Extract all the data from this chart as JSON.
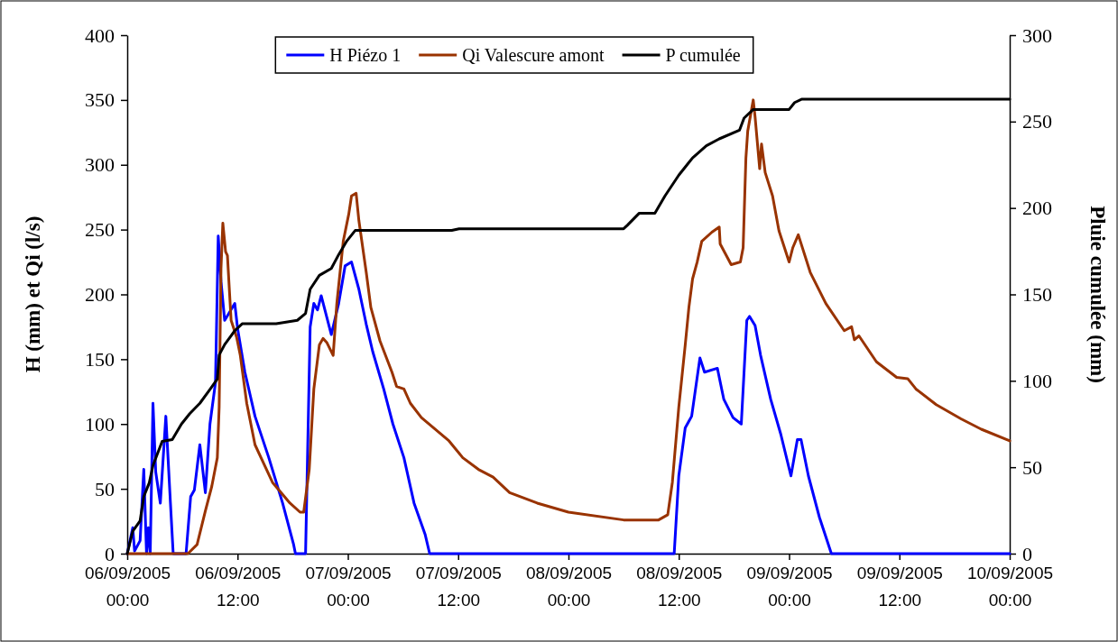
{
  "chart_data": {
    "type": "line",
    "ylabel": "H (mm) et Qi (l/s)",
    "y2label": "Pluie cumulée (mm)",
    "xlim": [
      "2005-09-06T00:00",
      "2005-09-10T00:00"
    ],
    "xticks": [
      {
        "value": "2005-09-06T00:00",
        "label": "06/09/2005 00:00"
      },
      {
        "value": "2005-09-06T12:00",
        "label": "06/09/2005 12:00"
      },
      {
        "value": "2005-09-07T00:00",
        "label": "07/09/2005 00:00"
      },
      {
        "value": "2005-09-07T12:00",
        "label": "07/09/2005 12:00"
      },
      {
        "value": "2005-09-08T00:00",
        "label": "08/09/2005 00:00"
      },
      {
        "value": "2005-09-08T12:00",
        "label": "08/09/2005 12:00"
      },
      {
        "value": "2005-09-09T00:00",
        "label": "09/09/2005 00:00"
      },
      {
        "value": "2005-09-09T12:00",
        "label": "09/09/2005 12:00"
      },
      {
        "value": "2005-09-10T00:00",
        "label": "10/09/2005 00:00"
      }
    ],
    "ylim": [
      0,
      400
    ],
    "yticks": [
      0,
      50,
      100,
      150,
      200,
      250,
      300,
      350,
      400
    ],
    "y2lim": [
      0,
      300
    ],
    "y2ticks": [
      0,
      50,
      100,
      150,
      200,
      250,
      300
    ],
    "grid": false,
    "legend": "top",
    "marker": "none",
    "line_style": "solid",
    "series": [
      {
        "name": "H Piézo 1",
        "color": "#0000ff",
        "x": [
          "2005-09-06T00:00",
          "2005-09-06T00:36",
          "2005-09-06T00:48",
          "2005-09-06T01:24",
          "2005-09-06T01:48",
          "2005-09-06T02:06",
          "2005-09-06T02:18",
          "2005-09-06T02:30",
          "2005-09-06T02:48",
          "2005-09-06T03:06",
          "2005-09-06T03:36",
          "2005-09-06T04:12",
          "2005-09-06T04:42",
          "2005-09-06T05:00",
          "2005-09-06T06:24",
          "2005-09-06T06:54",
          "2005-09-06T07:18",
          "2005-09-06T07:54",
          "2005-09-06T08:30",
          "2005-09-06T09:00",
          "2005-09-06T09:36",
          "2005-09-06T09:54",
          "2005-09-06T10:12",
          "2005-09-06T10:36",
          "2005-09-06T11:42",
          "2005-09-06T12:00",
          "2005-09-06T12:48",
          "2005-09-06T13:54",
          "2005-09-06T15:24",
          "2005-09-06T16:54",
          "2005-09-06T18:06",
          "2005-09-06T18:18",
          "2005-09-06T19:24",
          "2005-09-06T19:54",
          "2005-09-06T20:18",
          "2005-09-06T20:42",
          "2005-09-06T21:06",
          "2005-09-06T22:12",
          "2005-09-06T23:00",
          "2005-09-06T23:42",
          "2005-09-07T00:24",
          "2005-09-07T01:12",
          "2005-09-07T02:00",
          "2005-09-07T02:42",
          "2005-09-07T03:54",
          "2005-09-07T04:54",
          "2005-09-07T06:06",
          "2005-09-07T07:12",
          "2005-09-07T08:24",
          "2005-09-07T08:54",
          "2005-09-08T11:30",
          "2005-09-08T12:00",
          "2005-09-08T12:42",
          "2005-09-08T13:24",
          "2005-09-08T14:18",
          "2005-09-08T14:48",
          "2005-09-08T16:12",
          "2005-09-08T16:54",
          "2005-09-08T17:54",
          "2005-09-08T18:48",
          "2005-09-08T19:24",
          "2005-09-08T19:42",
          "2005-09-08T20:18",
          "2005-09-08T20:54",
          "2005-09-08T22:00",
          "2005-09-08T23:06",
          "2005-09-09T00:12",
          "2005-09-09T00:54",
          "2005-09-09T01:18",
          "2005-09-09T02:06",
          "2005-09-09T03:18",
          "2005-09-09T04:36",
          "2005-09-10T00:00"
        ],
        "values": [
          0,
          20,
          2,
          10,
          65,
          0,
          20,
          0,
          116,
          63,
          39,
          106,
          39,
          0,
          0,
          44,
          49,
          84,
          47,
          100,
          132,
          245,
          210,
          180,
          193,
          174,
          140,
          106,
          74,
          39,
          7,
          0,
          0,
          175,
          193,
          188,
          199,
          169,
          193,
          222,
          225,
          204,
          177,
          156,
          127,
          100,
          74,
          39,
          15,
          0,
          0,
          60,
          97,
          106,
          151,
          140,
          143,
          119,
          105,
          100,
          180,
          183,
          176,
          153,
          119,
          92,
          60,
          88,
          88,
          60,
          28,
          0,
          0
        ]
      },
      {
        "name": "Qi Valescure amont",
        "color": "#993300",
        "x": [
          "2005-09-06T00:00",
          "2005-09-06T06:36",
          "2005-09-06T07:36",
          "2005-09-06T08:30",
          "2005-09-06T09:12",
          "2005-09-06T09:48",
          "2005-09-06T10:00",
          "2005-09-06T10:12",
          "2005-09-06T10:24",
          "2005-09-06T10:42",
          "2005-09-06T10:54",
          "2005-09-06T11:18",
          "2005-09-06T11:54",
          "2005-09-06T12:18",
          "2005-09-06T13:00",
          "2005-09-06T13:54",
          "2005-09-06T15:48",
          "2005-09-06T17:42",
          "2005-09-06T18:48",
          "2005-09-06T19:12",
          "2005-09-06T19:48",
          "2005-09-06T20:18",
          "2005-09-06T20:54",
          "2005-09-06T21:18",
          "2005-09-06T21:42",
          "2005-09-06T22:24",
          "2005-09-06T22:48",
          "2005-09-06T23:30",
          "2005-09-07T00:06",
          "2005-09-07T00:24",
          "2005-09-07T00:54",
          "2005-09-07T01:12",
          "2005-09-07T02:00",
          "2005-09-07T02:30",
          "2005-09-07T03:30",
          "2005-09-07T04:48",
          "2005-09-07T05:18",
          "2005-09-07T06:06",
          "2005-09-07T06:48",
          "2005-09-07T08:00",
          "2005-09-07T11:00",
          "2005-09-07T12:30",
          "2005-09-07T14:12",
          "2005-09-07T15:48",
          "2005-09-07T17:36",
          "2005-09-07T20:36",
          "2005-09-08T00:00",
          "2005-09-08T06:00",
          "2005-09-08T09:48",
          "2005-09-08T10:48",
          "2005-09-08T11:18",
          "2005-09-08T12:00",
          "2005-09-08T12:42",
          "2005-09-08T13:06",
          "2005-09-08T13:30",
          "2005-09-08T14:00",
          "2005-09-08T14:30",
          "2005-09-08T15:36",
          "2005-09-08T16:24",
          "2005-09-08T16:30",
          "2005-09-08T17:42",
          "2005-09-08T18:42",
          "2005-09-08T19:00",
          "2005-09-08T19:18",
          "2005-09-08T19:30",
          "2005-09-08T20:06",
          "2005-09-08T20:18",
          "2005-09-08T20:48",
          "2005-09-08T21:00",
          "2005-09-08T21:24",
          "2005-09-08T22:12",
          "2005-09-08T22:54",
          "2005-09-09T00:00",
          "2005-09-09T00:24",
          "2005-09-09T01:00",
          "2005-09-09T02:18",
          "2005-09-09T04:00",
          "2005-09-09T06:00",
          "2005-09-09T06:48",
          "2005-09-09T07:06",
          "2005-09-09T07:36",
          "2005-09-09T09:30",
          "2005-09-09T11:42",
          "2005-09-09T12:54",
          "2005-09-09T13:48",
          "2005-09-09T16:00",
          "2005-09-09T18:42",
          "2005-09-09T20:54",
          "2005-09-10T00:00"
        ],
        "values": [
          0,
          0,
          7,
          33,
          52,
          74,
          113,
          220,
          255,
          233,
          230,
          180,
          167,
          153,
          116,
          84,
          55,
          39,
          32,
          32,
          65,
          127,
          161,
          166,
          163,
          153,
          193,
          241,
          262,
          276,
          278,
          257,
          217,
          190,
          164,
          140,
          129,
          127,
          116,
          105,
          87,
          74,
          65,
          59,
          47,
          39,
          32,
          26,
          26,
          30,
          55,
          113,
          161,
          190,
          212,
          225,
          241,
          248,
          252,
          239,
          223,
          225,
          236,
          305,
          326,
          350,
          337,
          297,
          316,
          294,
          276,
          249,
          225,
          236,
          246,
          217,
          193,
          172,
          175,
          165,
          168,
          148,
          136,
          135,
          127,
          115,
          104,
          96,
          87
        ]
      },
      {
        "name": "P cumulée",
        "color": "#000000",
        "axis": "y2",
        "x": [
          "2005-09-06T00:00",
          "2005-09-06T00:36",
          "2005-09-06T01:24",
          "2005-09-06T01:48",
          "2005-09-06T02:24",
          "2005-09-06T02:48",
          "2005-09-06T03:48",
          "2005-09-06T04:54",
          "2005-09-06T05:54",
          "2005-09-06T06:48",
          "2005-09-06T07:54",
          "2005-09-06T09:00",
          "2005-09-06T09:48",
          "2005-09-06T10:00",
          "2005-09-06T10:36",
          "2005-09-06T11:42",
          "2005-09-06T12:30",
          "2005-09-06T16:12",
          "2005-09-06T18:30",
          "2005-09-06T19:24",
          "2005-09-06T19:54",
          "2005-09-06T20:54",
          "2005-09-06T22:12",
          "2005-09-06T23:00",
          "2005-09-06T23:54",
          "2005-09-07T00:48",
          "2005-09-07T11:18",
          "2005-09-07T12:06",
          "2005-09-08T06:00",
          "2005-09-08T06:24",
          "2005-09-08T07:42",
          "2005-09-08T09:24",
          "2005-09-08T10:30",
          "2005-09-08T12:00",
          "2005-09-08T13:30",
          "2005-09-08T15:00",
          "2005-09-08T16:24",
          "2005-09-08T18:36",
          "2005-09-08T19:06",
          "2005-09-08T20:06",
          "2005-09-09T00:00",
          "2005-09-09T00:36",
          "2005-09-09T01:24",
          "2005-09-10T00:00"
        ],
        "values": [
          0,
          13,
          19,
          33,
          41,
          51,
          65,
          66,
          75,
          81,
          87,
          95,
          101,
          115,
          121,
          129,
          133,
          133,
          135,
          139,
          153,
          161,
          165,
          173,
          181,
          187,
          187,
          188,
          188,
          190,
          197,
          197,
          207,
          219,
          229,
          236,
          240,
          245,
          252,
          257,
          257,
          261,
          263,
          263
        ]
      }
    ]
  }
}
